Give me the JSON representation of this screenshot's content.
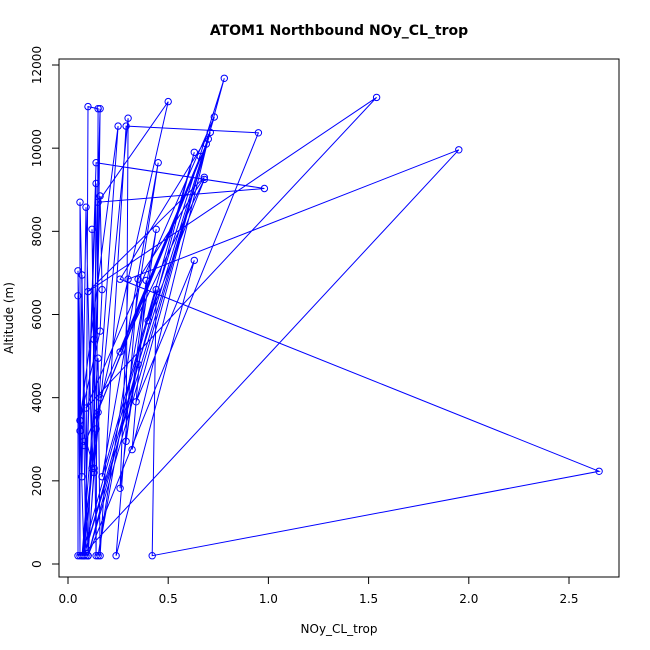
{
  "chart_data": {
    "type": "line",
    "title": "ATOM1 Northbound NOy_CL_trop",
    "xlabel": "NOy_CL_trop",
    "ylabel": "Altitude (m)",
    "xlim": [
      0,
      2.7
    ],
    "ylim": [
      0,
      12000
    ],
    "xticks": [
      0.0,
      0.5,
      1.0,
      1.5,
      2.0,
      2.5
    ],
    "xtick_labels": [
      "0.0",
      "0.5",
      "1.0",
      "1.5",
      "2.0",
      "2.5"
    ],
    "yticks": [
      0,
      2000,
      4000,
      6000,
      8000,
      10000,
      12000
    ],
    "ytick_labels": [
      "0",
      "2000",
      "4000",
      "6000",
      "8000",
      "10000",
      "12000"
    ],
    "grid": false,
    "legend": "none",
    "series": [
      {
        "color": "#0000ff",
        "points": [
          [
            0.05,
            200
          ],
          [
            0.05,
            6450
          ],
          [
            0.06,
            3200
          ],
          [
            0.07,
            6950
          ],
          [
            0.08,
            2950
          ],
          [
            0.09,
            200
          ],
          [
            0.1,
            11000
          ],
          [
            0.15,
            10950
          ],
          [
            0.14,
            200
          ],
          [
            0.12,
            8050
          ],
          [
            0.13,
            5400
          ],
          [
            0.1,
            200
          ],
          [
            0.16,
            10950
          ],
          [
            0.14,
            3250
          ],
          [
            0.08,
            200
          ],
          [
            0.14,
            9150
          ],
          [
            0.13,
            2200
          ],
          [
            0.1,
            200
          ],
          [
            0.06,
            8700
          ],
          [
            0.06,
            200
          ],
          [
            0.05,
            7050
          ],
          [
            0.07,
            2100
          ],
          [
            0.09,
            8580
          ],
          [
            0.12,
            2300
          ],
          [
            0.16,
            8850
          ],
          [
            0.17,
            6600
          ],
          [
            0.16,
            5600
          ],
          [
            0.06,
            3450
          ],
          [
            0.08,
            200
          ],
          [
            0.14,
            9650
          ],
          [
            0.98,
            9030
          ],
          [
            0.15,
            8700
          ],
          [
            0.5,
            11120
          ],
          [
            0.15,
            3650
          ],
          [
            0.07,
            200
          ],
          [
            0.15,
            4950
          ],
          [
            0.16,
            200
          ],
          [
            0.29,
            10530
          ],
          [
            0.95,
            10370
          ],
          [
            0.1,
            200
          ],
          [
            0.25,
            10530
          ],
          [
            0.06,
            3450
          ],
          [
            0.13,
            2300
          ],
          [
            0.3,
            10720
          ],
          [
            0.29,
            2950
          ],
          [
            0.44,
            8050
          ],
          [
            0.15,
            200
          ],
          [
            0.45,
            9650
          ],
          [
            0.17,
            2100
          ],
          [
            0.63,
            9900
          ],
          [
            0.1,
            200
          ],
          [
            0.71,
            10380
          ],
          [
            0.26,
            6850
          ],
          [
            2.65,
            2230
          ],
          [
            0.42,
            200
          ],
          [
            0.44,
            6600
          ],
          [
            0.07,
            200
          ],
          [
            1.95,
            9960
          ],
          [
            0.3,
            6850
          ],
          [
            0.26,
            1820
          ],
          [
            0.39,
            6820
          ],
          [
            0.32,
            2750
          ],
          [
            0.7,
            10220
          ],
          [
            0.08,
            200
          ],
          [
            0.35,
            4800
          ],
          [
            0.73,
            10750
          ],
          [
            0.09,
            3750
          ],
          [
            1.54,
            11220
          ],
          [
            0.1,
            6550
          ],
          [
            0.68,
            9300
          ],
          [
            0.35,
            6850
          ],
          [
            0.24,
            200
          ],
          [
            0.63,
            7300
          ],
          [
            0.34,
            3900
          ],
          [
            0.78,
            11680
          ],
          [
            0.4,
            5850
          ],
          [
            0.68,
            9250
          ],
          [
            0.26,
            5100
          ],
          [
            0.69,
            10100
          ],
          [
            0.08,
            2850
          ],
          [
            0.66,
            9800
          ],
          [
            0.16,
            4000
          ]
        ]
      }
    ]
  }
}
